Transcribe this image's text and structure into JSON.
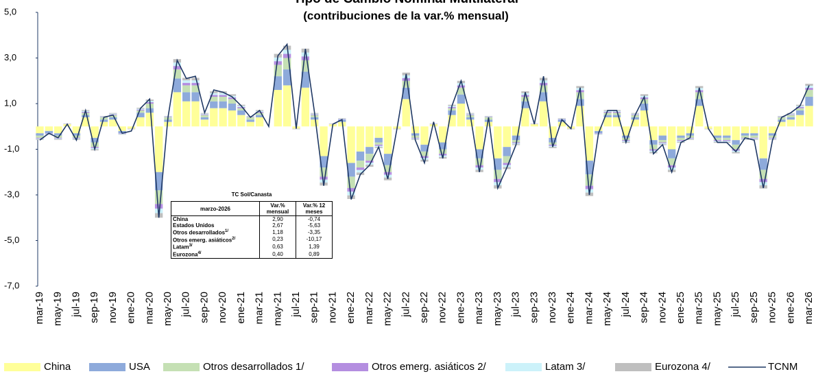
{
  "chart_data": {
    "type": "bar",
    "title": "Tipo de Cambio Nominal Multilateral",
    "subtitle": "(contribuciones de la var.% mensual)",
    "stacked": true,
    "categories": [
      "mar-19",
      null,
      "may-19",
      null,
      "jul-19",
      null,
      "sep-19",
      null,
      "nov-19",
      null,
      "ene-20",
      null,
      "mar-20",
      null,
      "may-20",
      null,
      "jul-20",
      null,
      "sep-20",
      null,
      "nov-20",
      null,
      "ene-21",
      null,
      "mar-21",
      null,
      "may-21",
      null,
      "jul-21",
      null,
      "sep-21",
      null,
      "nov-21",
      null,
      "ene-22",
      null,
      "mar-22",
      null,
      "may-22",
      null,
      "jul-22",
      null,
      "sep-22",
      null,
      "nov-22",
      null,
      "ene-23",
      null,
      "mar-23",
      null,
      "may-23",
      null,
      "jul-23",
      null,
      "sep-23",
      null,
      "nov-23",
      null,
      "ene-24",
      null,
      "mar-24",
      null,
      "may-24",
      null,
      "jul-24",
      null,
      "sep-24",
      null,
      "nov-24",
      null,
      "ene-25",
      null,
      "mar-25",
      null,
      "may-25",
      null,
      "jul-25",
      null,
      "sep-25",
      null,
      "nov-25",
      null,
      "ene-26",
      null,
      "mar-26"
    ],
    "ylim": [
      -7,
      5
    ],
    "yticks": [
      {
        "value": -7,
        "label": "-7,0"
      },
      {
        "value": -5,
        "label": "-5,0"
      },
      {
        "value": -3,
        "label": "-3,0"
      },
      {
        "value": -1,
        "label": "-1,0"
      },
      {
        "value": 1,
        "label": "1,0"
      },
      {
        "value": 3,
        "label": "3,0"
      },
      {
        "value": 5,
        "label": "5,0"
      }
    ],
    "grid": false,
    "legend": "bottom",
    "series": [
      {
        "name": "China",
        "color": "#ffff99",
        "values": [
          -0.3,
          -0.2,
          -0.3,
          0.1,
          -0.3,
          0.4,
          -0.5,
          0.2,
          0.3,
          -0.2,
          -0.1,
          0.4,
          0.6,
          -2.0,
          0.2,
          1.5,
          1.1,
          1.1,
          0.3,
          0.8,
          0.8,
          0.7,
          0.5,
          0.2,
          0.4,
          0,
          1.6,
          1.8,
          -0.1,
          1.7,
          0.3,
          -1.3,
          0.1,
          0.2,
          -1.6,
          -1.1,
          -0.9,
          -0.5,
          -1.2,
          -0.1,
          1.2,
          -0.3,
          -0.8,
          0.1,
          -0.7,
          0.5,
          1.0,
          0.3,
          -1.0,
          0.2,
          -1.4,
          -0.9,
          -0.4,
          0.8,
          0.1,
          1.1,
          -0.5,
          0.2,
          -0.1,
          0.9,
          -1.5,
          -0.2,
          0.4,
          0.4,
          -0.4,
          0.3,
          0.7,
          -0.6,
          -0.4,
          -1.0,
          -0.4,
          -0.3,
          0.9,
          -0.1,
          -0.4,
          -0.4,
          -0.6,
          -0.3,
          -0.3,
          -1.4,
          -0.3,
          0.2,
          0.3,
          0.5,
          0.9
        ]
      },
      {
        "name": "USA",
        "color": "#8eaadb",
        "values": [
          -0.1,
          -0.1,
          -0.1,
          0,
          -0.1,
          0.1,
          -0.2,
          0.1,
          0.1,
          -0.1,
          0,
          0.2,
          0.2,
          -0.8,
          0.1,
          0.6,
          0.4,
          0.4,
          0.1,
          0.3,
          0.3,
          0.3,
          0.2,
          0.1,
          0.1,
          0,
          0.6,
          0.7,
          0,
          0.7,
          0.1,
          -0.5,
          0,
          0.1,
          -0.6,
          -0.4,
          -0.3,
          -0.2,
          -0.5,
          0,
          0.5,
          -0.1,
          -0.3,
          0,
          -0.3,
          0.2,
          0.4,
          0.1,
          -0.4,
          0.1,
          -0.5,
          -0.4,
          -0.2,
          0.3,
          0,
          0.4,
          -0.2,
          0.1,
          0,
          0.3,
          -0.6,
          -0.1,
          0.1,
          0.1,
          -0.1,
          0.1,
          0.3,
          -0.2,
          -0.2,
          -0.4,
          -0.1,
          -0.1,
          0.3,
          0,
          -0.1,
          -0.1,
          -0.2,
          -0.1,
          -0.1,
          -0.5,
          -0.1,
          0.1,
          0.1,
          0.2,
          0.4
        ]
      },
      {
        "name": "Otros desarrollados 1/",
        "color": "#c5e0b4",
        "values": [
          -0.1,
          0,
          -0.1,
          0,
          -0.1,
          0.1,
          -0.2,
          0.1,
          0.1,
          0,
          0,
          0.1,
          0.2,
          -0.6,
          0.1,
          0.4,
          0.3,
          0.3,
          0.1,
          0.2,
          0.2,
          0.2,
          0.1,
          0.1,
          0.1,
          0,
          0.5,
          0.5,
          0,
          0.5,
          0.1,
          -0.4,
          0,
          0,
          -0.5,
          -0.3,
          -0.3,
          -0.1,
          -0.3,
          0,
          0.3,
          -0.1,
          -0.2,
          0,
          -0.2,
          0.1,
          0.3,
          0.1,
          -0.3,
          0.1,
          -0.4,
          -0.3,
          -0.1,
          0.2,
          0,
          0.3,
          -0.1,
          0,
          0,
          0.3,
          -0.5,
          0,
          0.1,
          0.1,
          -0.1,
          0.1,
          0.2,
          -0.2,
          -0.1,
          -0.3,
          -0.1,
          -0.1,
          0.3,
          0,
          -0.1,
          -0.1,
          -0.2,
          -0.1,
          -0.1,
          -0.4,
          -0.1,
          0.1,
          0.1,
          0.1,
          0.3
        ]
      },
      {
        "name": "Otros emerg. asiáticos 2/",
        "color": "#b48ee0",
        "values": [
          -0.03,
          -0.02,
          -0.03,
          0.01,
          -0.03,
          0.04,
          -0.05,
          0.02,
          0.03,
          -0.02,
          -0.01,
          0.04,
          0.06,
          -0.2,
          0.02,
          0.15,
          0.11,
          0.11,
          0.03,
          0.08,
          0.08,
          0.07,
          0.05,
          0.02,
          0.04,
          0,
          0.16,
          0.18,
          -0.01,
          0.17,
          0.03,
          -0.13,
          0.01,
          0.02,
          -0.16,
          -0.11,
          -0.09,
          -0.05,
          -0.12,
          -0.01,
          0.12,
          -0.03,
          -0.08,
          0.01,
          -0.07,
          0.05,
          0.1,
          0.03,
          -0.1,
          0.02,
          -0.14,
          -0.09,
          -0.04,
          0.08,
          0.01,
          0.11,
          -0.05,
          0.02,
          -0.01,
          0.09,
          -0.15,
          -0.02,
          0.04,
          0.04,
          -0.04,
          0.03,
          0.07,
          -0.06,
          -0.04,
          -0.1,
          -0.04,
          -0.03,
          0.09,
          -0.01,
          -0.04,
          -0.04,
          -0.06,
          -0.03,
          -0.03,
          -0.14,
          -0.03,
          0.02,
          0.03,
          0.05,
          0.09
        ]
      },
      {
        "name": "Latam 3/",
        "color": "#ccf2fa",
        "values": [
          -0.03,
          -0.02,
          -0.03,
          0.01,
          -0.03,
          0.04,
          -0.05,
          0.02,
          0.03,
          -0.02,
          -0.01,
          0.04,
          0.06,
          -0.2,
          0.02,
          0.15,
          0.11,
          0.11,
          0.03,
          0.08,
          0.08,
          0.07,
          0.05,
          0.02,
          0.04,
          0,
          0.16,
          0.18,
          -0.01,
          0.17,
          0.03,
          -0.13,
          0.01,
          0.02,
          -0.16,
          -0.11,
          -0.09,
          -0.05,
          -0.12,
          -0.01,
          0.12,
          -0.03,
          -0.08,
          0.01,
          -0.07,
          0.05,
          0.1,
          0.03,
          -0.1,
          0.02,
          -0.14,
          -0.09,
          -0.04,
          0.08,
          0.01,
          0.11,
          -0.05,
          0.02,
          -0.01,
          0.09,
          -0.15,
          -0.02,
          0.04,
          0.04,
          -0.04,
          0.03,
          0.07,
          -0.06,
          -0.04,
          -0.1,
          -0.04,
          -0.03,
          0.09,
          -0.01,
          -0.04,
          -0.04,
          -0.06,
          -0.03,
          -0.03,
          -0.14,
          -0.03,
          0.02,
          0.03,
          0.05,
          0.09
        ]
      },
      {
        "name": "Eurozona 4/",
        "color": "#bfbfbf",
        "values": [
          -0.03,
          -0.02,
          -0.03,
          0.01,
          -0.03,
          0.04,
          -0.05,
          0.02,
          0.03,
          -0.02,
          -0.01,
          0.04,
          0.06,
          -0.2,
          0.02,
          0.15,
          0.11,
          0.11,
          0.03,
          0.08,
          0.08,
          0.07,
          0.05,
          0.02,
          0.04,
          0,
          0.16,
          0.18,
          -0.01,
          0.17,
          0.03,
          -0.13,
          0.01,
          0.02,
          -0.16,
          -0.11,
          -0.09,
          -0.05,
          -0.12,
          -0.01,
          0.12,
          -0.03,
          -0.08,
          0.01,
          -0.07,
          0.05,
          0.1,
          0.03,
          -0.1,
          0.02,
          -0.14,
          -0.09,
          -0.04,
          0.08,
          0.01,
          0.11,
          -0.05,
          0.02,
          -0.01,
          0.09,
          -0.15,
          -0.02,
          0.04,
          0.04,
          -0.04,
          0.03,
          0.07,
          -0.06,
          -0.04,
          -0.1,
          -0.04,
          -0.03,
          0.09,
          -0.01,
          -0.04,
          -0.04,
          -0.06,
          -0.03,
          -0.03,
          -0.14,
          -0.03,
          0.02,
          0.03,
          0.05,
          0.09
        ]
      },
      {
        "name": "TCNM",
        "type": "line",
        "color": "#1f3864",
        "values": [
          -0.6,
          -0.3,
          -0.5,
          0.1,
          -0.6,
          0.7,
          -1.0,
          0.4,
          0.5,
          -0.3,
          -0.2,
          0.8,
          1.2,
          -4.0,
          0.4,
          2.9,
          2.1,
          2.2,
          0.6,
          1.6,
          1.5,
          1.3,
          0.9,
          0.4,
          0.7,
          0.0,
          3.1,
          3.6,
          -0.1,
          3.4,
          0.6,
          -2.6,
          0.1,
          0.3,
          -3.2,
          -2.1,
          -1.7,
          -0.9,
          -2.3,
          -0.1,
          2.3,
          -0.6,
          -1.6,
          0.2,
          -1.4,
          0.9,
          2.0,
          0.5,
          -2.0,
          0.4,
          -2.7,
          -1.8,
          -0.8,
          1.5,
          0.1,
          2.2,
          -0.9,
          0.3,
          -0.1,
          1.7,
          -3.0,
          -0.3,
          0.7,
          0.7,
          -0.7,
          0.5,
          1.3,
          -1.2,
          -0.8,
          -2.0,
          -0.7,
          -0.5,
          1.7,
          -0.1,
          -0.7,
          -0.7,
          -1.1,
          -0.5,
          -0.6,
          -2.7,
          -0.6,
          0.4,
          0.6,
          0.9,
          1.8
        ]
      }
    ]
  },
  "inset_table": {
    "title": "TC Sol/Canasta",
    "header": [
      "marzo-2026",
      "Var.% mensual",
      "Var.% 12 meses"
    ],
    "rows": [
      {
        "label": "China",
        "note": null,
        "mensual": "2,90",
        "anual": "-0,74"
      },
      {
        "label": "Estados Unidos",
        "note": null,
        "mensual": "2,67",
        "anual": "-5,63"
      },
      {
        "label": "Otros desarrollados",
        "note": "1/",
        "mensual": "1,18",
        "anual": "-3,35"
      },
      {
        "label": "Otros emerg. asiáticos",
        "note": "2/",
        "mensual": "0,23",
        "anual": "-10,17"
      },
      {
        "label": "Latam",
        "note": "3/",
        "mensual": "0,63",
        "anual": "1,39"
      },
      {
        "label": "Eurozona",
        "note": "4/",
        "mensual": "0,40",
        "anual": "0,89"
      }
    ]
  }
}
